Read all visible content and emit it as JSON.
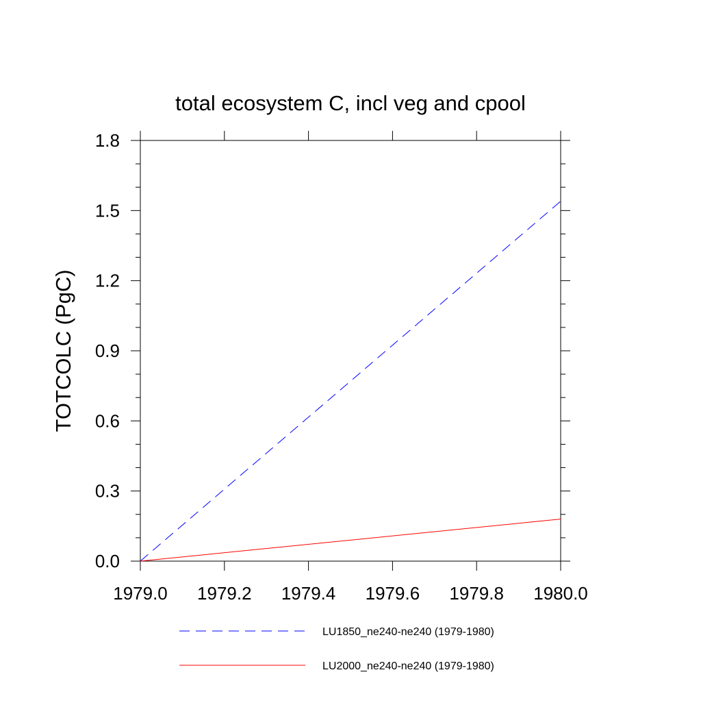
{
  "chart_data": {
    "type": "line",
    "title": "total ecosystem C, incl veg and cpool",
    "xlabel": "",
    "ylabel": "TOTCOLC  (PgC)",
    "xlim": [
      1979.0,
      1980.0
    ],
    "ylim": [
      0.0,
      1.8
    ],
    "x_ticks": [
      "1979.0",
      "1979.2",
      "1979.4",
      "1979.6",
      "1979.8",
      "1980.0"
    ],
    "y_ticks": [
      "0.0",
      "0.3",
      "0.6",
      "0.9",
      "1.2",
      "1.5",
      "1.8"
    ],
    "grid": false,
    "legend_position": "bottom",
    "series": [
      {
        "name": "LU1850_ne240-ne240 (1979-1980)",
        "color": "#0000ff",
        "dash": "dashed",
        "x": [
          1979.0,
          1980.0
        ],
        "y": [
          0.0,
          1.54
        ]
      },
      {
        "name": "LU2000_ne240-ne240 (1979-1980)",
        "color": "#ff0000",
        "dash": "solid",
        "x": [
          1979.0,
          1980.0
        ],
        "y": [
          0.0,
          0.18
        ]
      }
    ]
  }
}
